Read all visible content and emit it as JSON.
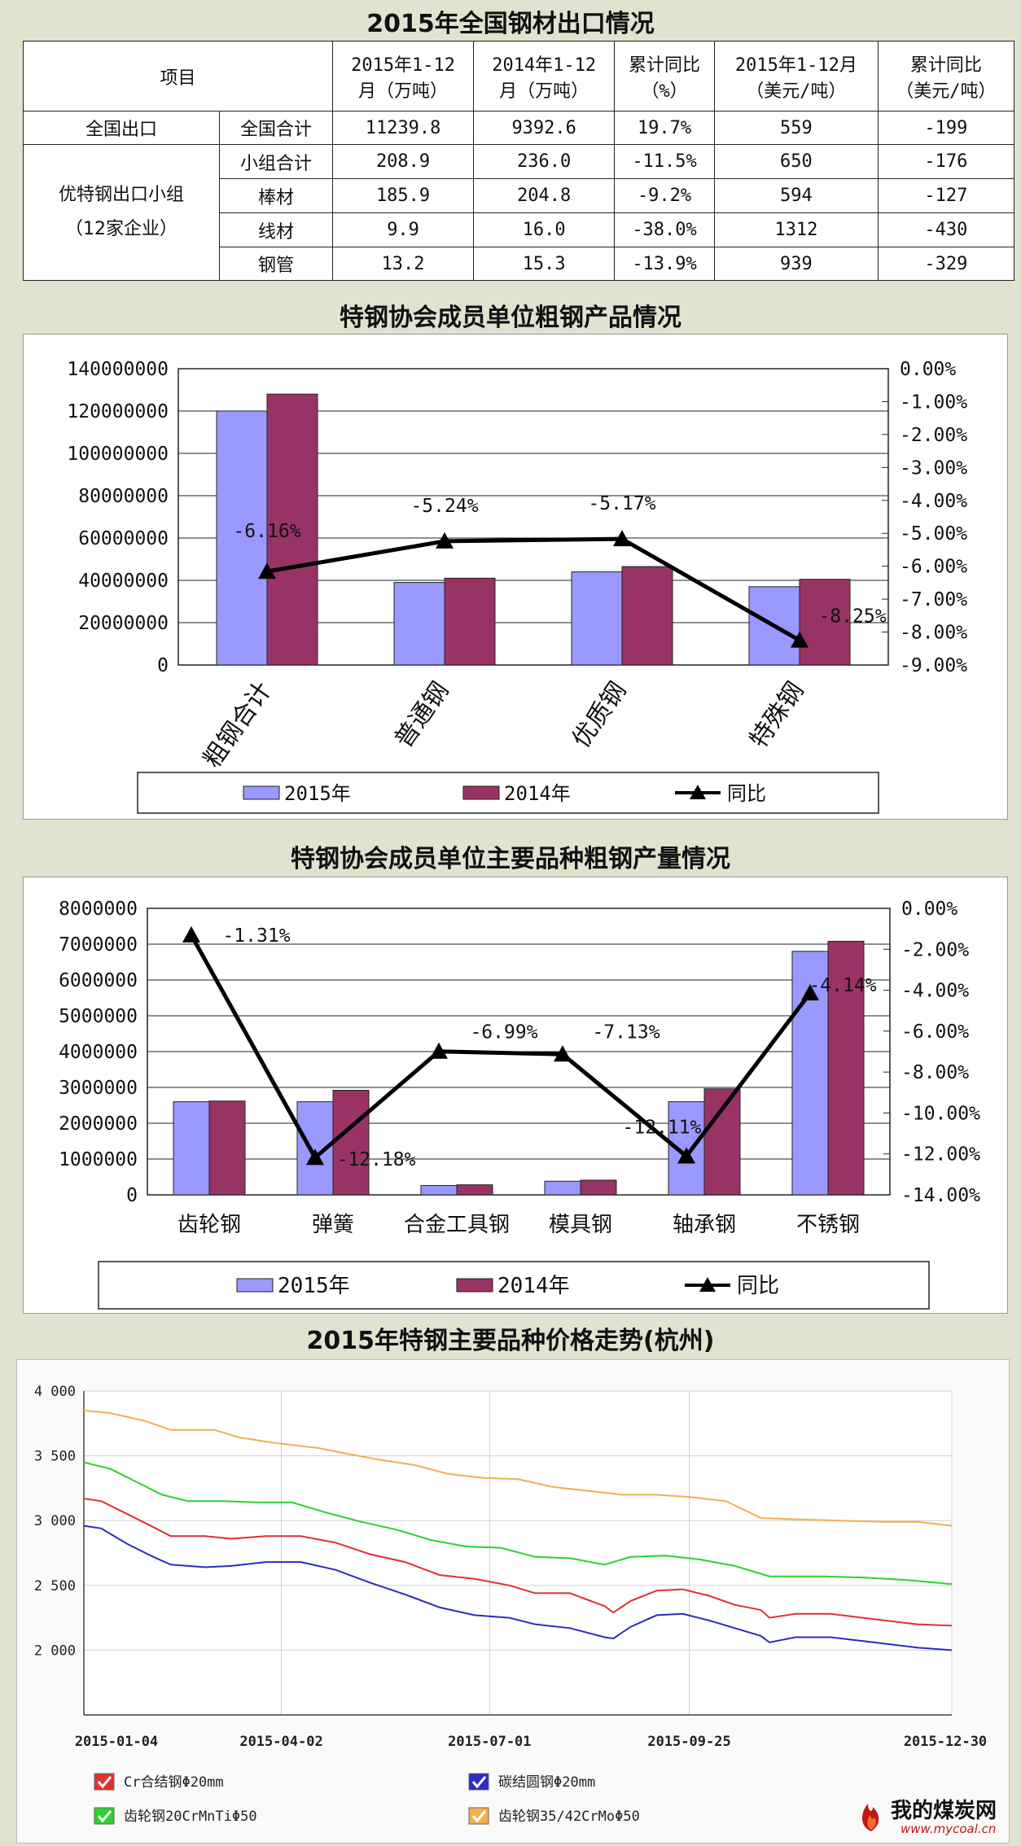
{
  "table1": {
    "title": "2015年全国钢材出口情况",
    "headers": [
      "项目",
      "2015年1-12\n月（万吨）",
      "2014年1-12\n月（万吨）",
      "累计同比\n（%）",
      "2015年1-12月\n（美元/吨）",
      "累计同比\n（美元/吨）"
    ],
    "group1": "全国出口",
    "group2_line1": "优特钢出口小组",
    "group2_line2": "（12家企业）",
    "rows": [
      [
        "全国合计",
        "11239.8",
        "9392.6",
        "19.7%",
        "559",
        "-199"
      ],
      [
        "小组合计",
        "208.9",
        "236.0",
        "-11.5%",
        "650",
        "-176"
      ],
      [
        "棒材",
        "185.9",
        "204.8",
        "-9.2%",
        "594",
        "-127"
      ],
      [
        "线材",
        "9.9",
        "16.0",
        "-38.0%",
        "1312",
        "-430"
      ],
      [
        "钢管",
        "13.2",
        "15.3",
        "-13.9%",
        "939",
        "-329"
      ]
    ]
  },
  "chart_data": [
    {
      "type": "bar",
      "title": "特钢协会成员单位粗钢产品情况",
      "categories": [
        "粗钢合计",
        "普通钢",
        "优质钢",
        "特殊钢"
      ],
      "series": [
        {
          "name": "2015年",
          "values": [
            120000000,
            39000000,
            44000000,
            37000000
          ],
          "color": "#9999ff"
        },
        {
          "name": "2014年",
          "values": [
            128000000,
            41000000,
            46500000,
            40500000
          ],
          "color": "#993366"
        }
      ],
      "line": {
        "name": "同比",
        "values": [
          -6.16,
          -5.24,
          -5.17,
          -8.25
        ],
        "labels": [
          "-6.16%",
          "-5.24%",
          "-5.17%",
          "-8.25%"
        ]
      },
      "ylim": [
        0,
        140000000
      ],
      "yticks": [
        "140000000",
        "120000000",
        "100000000",
        "80000000",
        "60000000",
        "40000000",
        "20000000",
        "0"
      ],
      "y2lim": [
        -9,
        0
      ],
      "y2ticks": [
        "0.00%",
        "-1.00%",
        "-2.00%",
        "-3.00%",
        "-4.00%",
        "-5.00%",
        "-6.00%",
        "-7.00%",
        "-8.00%",
        "-9.00%"
      ]
    },
    {
      "type": "bar",
      "title": "特钢协会成员单位主要品种粗钢产量情况",
      "categories": [
        "齿轮钢",
        "弹簧",
        "合金工具钢",
        "模具钢",
        "轴承钢",
        "不锈钢"
      ],
      "series": [
        {
          "name": "2015年",
          "values": [
            2600000,
            2600000,
            260000,
            380000,
            2600000,
            6800000
          ],
          "color": "#9999ff"
        },
        {
          "name": "2014年",
          "values": [
            2620000,
            2920000,
            280000,
            410000,
            2960000,
            7080000
          ],
          "color": "#993366"
        }
      ],
      "line": {
        "name": "同比",
        "values": [
          -1.31,
          -12.18,
          -6.99,
          -7.13,
          -12.11,
          -4.14
        ],
        "labels": [
          "-1.31%",
          "-12.18%",
          "-6.99%",
          "-7.13%",
          "-12.11%",
          "-4.14%"
        ]
      },
      "ylim": [
        0,
        8000000
      ],
      "yticks": [
        "8000000",
        "7000000",
        "6000000",
        "5000000",
        "4000000",
        "3000000",
        "2000000",
        "1000000",
        "0"
      ],
      "y2lim": [
        -14,
        0
      ],
      "y2ticks": [
        "0.00%",
        "-2.00%",
        "-4.00%",
        "-6.00%",
        "-8.00%",
        "-10.00%",
        "-12.00%",
        "-14.00%"
      ]
    },
    {
      "type": "line",
      "title": "2015年特钢主要品种价格走势(杭州)",
      "xticks": [
        "2015-01-04",
        "2015-04-02",
        "2015-07-01",
        "2015-09-25",
        "2015-12-30"
      ],
      "yticks": [
        "4 000",
        "3 500",
        "3 000",
        "2 500",
        "2 000"
      ],
      "ylim": [
        1500,
        4000
      ],
      "series": [
        {
          "name": "Cr合结钢Φ20mm",
          "color": "#e03030",
          "points": [
            [
              0,
              3170
            ],
            [
              0.02,
              3150
            ],
            [
              0.05,
              3050
            ],
            [
              0.08,
              2950
            ],
            [
              0.1,
              2880
            ],
            [
              0.14,
              2880
            ],
            [
              0.17,
              2860
            ],
            [
              0.21,
              2880
            ],
            [
              0.25,
              2880
            ],
            [
              0.29,
              2830
            ],
            [
              0.33,
              2740
            ],
            [
              0.37,
              2680
            ],
            [
              0.41,
              2580
            ],
            [
              0.45,
              2550
            ],
            [
              0.49,
              2500
            ],
            [
              0.52,
              2440
            ],
            [
              0.56,
              2440
            ],
            [
              0.6,
              2340
            ],
            [
              0.61,
              2290
            ],
            [
              0.63,
              2380
            ],
            [
              0.66,
              2460
            ],
            [
              0.69,
              2470
            ],
            [
              0.72,
              2420
            ],
            [
              0.75,
              2350
            ],
            [
              0.78,
              2310
            ],
            [
              0.79,
              2250
            ],
            [
              0.82,
              2280
            ],
            [
              0.86,
              2280
            ],
            [
              0.91,
              2240
            ],
            [
              0.96,
              2200
            ],
            [
              1,
              2190
            ]
          ]
        },
        {
          "name": "碳结圆钢Φ20mm",
          "color": "#2b2bc8",
          "points": [
            [
              0,
              2960
            ],
            [
              0.02,
              2940
            ],
            [
              0.05,
              2820
            ],
            [
              0.08,
              2720
            ],
            [
              0.1,
              2660
            ],
            [
              0.14,
              2640
            ],
            [
              0.17,
              2650
            ],
            [
              0.21,
              2680
            ],
            [
              0.25,
              2680
            ],
            [
              0.29,
              2620
            ],
            [
              0.33,
              2520
            ],
            [
              0.37,
              2430
            ],
            [
              0.41,
              2330
            ],
            [
              0.45,
              2270
            ],
            [
              0.49,
              2250
            ],
            [
              0.52,
              2200
            ],
            [
              0.56,
              2170
            ],
            [
              0.6,
              2100
            ],
            [
              0.61,
              2090
            ],
            [
              0.63,
              2180
            ],
            [
              0.66,
              2270
            ],
            [
              0.69,
              2280
            ],
            [
              0.72,
              2230
            ],
            [
              0.75,
              2170
            ],
            [
              0.78,
              2110
            ],
            [
              0.79,
              2060
            ],
            [
              0.82,
              2100
            ],
            [
              0.86,
              2100
            ],
            [
              0.91,
              2060
            ],
            [
              0.96,
              2020
            ],
            [
              1,
              2000
            ]
          ]
        },
        {
          "name": "齿轮钢20CrMnTiΦ50",
          "color": "#2ed12e",
          "points": [
            [
              0,
              3450
            ],
            [
              0.03,
              3400
            ],
            [
              0.06,
              3300
            ],
            [
              0.09,
              3200
            ],
            [
              0.12,
              3150
            ],
            [
              0.16,
              3150
            ],
            [
              0.2,
              3140
            ],
            [
              0.24,
              3140
            ],
            [
              0.28,
              3060
            ],
            [
              0.32,
              2990
            ],
            [
              0.36,
              2930
            ],
            [
              0.4,
              2850
            ],
            [
              0.44,
              2800
            ],
            [
              0.48,
              2790
            ],
            [
              0.52,
              2720
            ],
            [
              0.56,
              2710
            ],
            [
              0.6,
              2660
            ],
            [
              0.63,
              2720
            ],
            [
              0.67,
              2730
            ],
            [
              0.71,
              2700
            ],
            [
              0.75,
              2650
            ],
            [
              0.79,
              2570
            ],
            [
              0.85,
              2570
            ],
            [
              0.9,
              2560
            ],
            [
              0.95,
              2540
            ],
            [
              1,
              2510
            ]
          ]
        },
        {
          "name": "齿轮钢35/42CrMoΦ50",
          "color": "#f0b050",
          "points": [
            [
              0,
              3850
            ],
            [
              0.03,
              3830
            ],
            [
              0.07,
              3770
            ],
            [
              0.1,
              3700
            ],
            [
              0.15,
              3700
            ],
            [
              0.18,
              3640
            ],
            [
              0.22,
              3600
            ],
            [
              0.27,
              3560
            ],
            [
              0.3,
              3520
            ],
            [
              0.34,
              3470
            ],
            [
              0.38,
              3430
            ],
            [
              0.42,
              3360
            ],
            [
              0.46,
              3330
            ],
            [
              0.5,
              3320
            ],
            [
              0.54,
              3260
            ],
            [
              0.58,
              3230
            ],
            [
              0.62,
              3200
            ],
            [
              0.66,
              3200
            ],
            [
              0.7,
              3180
            ],
            [
              0.74,
              3150
            ],
            [
              0.78,
              3020
            ],
            [
              0.82,
              3010
            ],
            [
              0.87,
              3000
            ],
            [
              0.92,
              2990
            ],
            [
              0.96,
              2990
            ],
            [
              1,
              2960
            ]
          ]
        }
      ]
    }
  ],
  "watermark": {
    "name": "我的煤炭网",
    "url": "www.mycoal.cn"
  }
}
